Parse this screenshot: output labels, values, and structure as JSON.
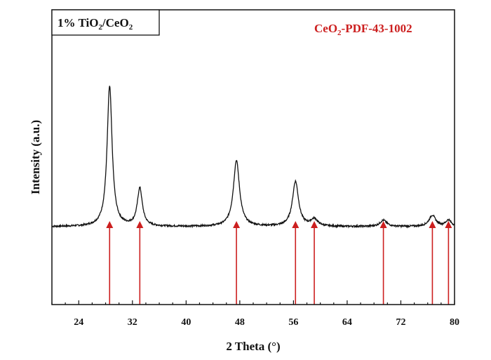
{
  "chart_data": {
    "type": "line",
    "xlabel": "2 Theta (°)",
    "ylabel": "Intensity (a.u.)",
    "xlim": [
      20,
      80
    ],
    "xticks": [
      24,
      32,
      40,
      48,
      56,
      64,
      72,
      80
    ],
    "yticks_shown": false,
    "grid": false,
    "sample_label": {
      "prefix": "1% TiO",
      "sub1": "2",
      "mid": "/CeO",
      "sub2": "2"
    },
    "reference_label": {
      "prefix": "CeO",
      "sub": "2",
      "suffix": "-PDF-43-1002"
    },
    "series": [
      {
        "style": "black-line",
        "baseline": 0.1,
        "peaks": [
          {
            "x": 28.6,
            "height": 1.0,
            "width": 0.45
          },
          {
            "x": 33.1,
            "height": 0.27,
            "width": 0.45
          },
          {
            "x": 47.5,
            "height": 0.47,
            "width": 0.55
          },
          {
            "x": 56.3,
            "height": 0.32,
            "width": 0.55
          },
          {
            "x": 59.1,
            "height": 0.05,
            "width": 0.6
          },
          {
            "x": 69.4,
            "height": 0.045,
            "width": 0.6
          },
          {
            "x": 76.7,
            "height": 0.08,
            "width": 0.6
          },
          {
            "x": 79.1,
            "height": 0.045,
            "width": 0.5
          }
        ]
      }
    ],
    "reference_peaks": [
      28.6,
      33.1,
      47.5,
      56.3,
      59.1,
      69.4,
      76.7,
      79.1
    ],
    "reference_color": "#cc1f1f",
    "line_color": "#111111"
  }
}
